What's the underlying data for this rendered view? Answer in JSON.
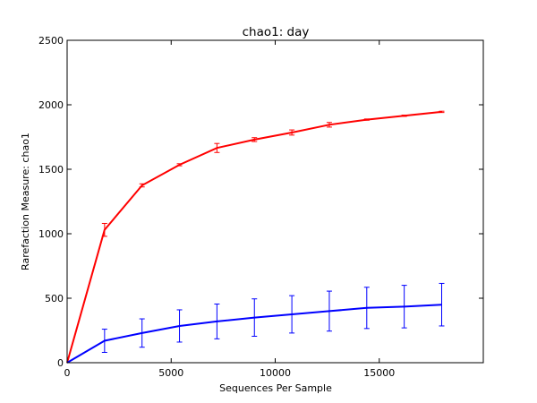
{
  "chart_data": {
    "type": "line",
    "title": "chao1: day",
    "xlabel": "Sequences Per Sample",
    "ylabel": "Rarefaction Measure: chao1",
    "xlim": [
      0,
      20000
    ],
    "ylim": [
      0,
      2500
    ],
    "xticks": [
      0,
      5000,
      10000,
      15000
    ],
    "yticks": [
      0,
      500,
      1000,
      1500,
      2000,
      2500
    ],
    "grid": false,
    "legend": "none",
    "series": [
      {
        "color": "#ff0000",
        "x": [
          0,
          1800,
          3600,
          5400,
          7200,
          9000,
          10800,
          12600,
          14400,
          16200,
          18000
        ],
        "y": [
          0,
          1030,
          1375,
          1535,
          1665,
          1730,
          1785,
          1845,
          1885,
          1915,
          1945
        ],
        "err": [
          0,
          50,
          12,
          8,
          35,
          15,
          20,
          18,
          5,
          5,
          5
        ]
      },
      {
        "color": "#0000ff",
        "x": [
          0,
          1800,
          3600,
          5400,
          7200,
          9000,
          10800,
          12600,
          14400,
          16200,
          18000
        ],
        "y": [
          0,
          170,
          230,
          285,
          320,
          350,
          375,
          400,
          425,
          435,
          450
        ],
        "err": [
          0,
          90,
          110,
          125,
          135,
          145,
          145,
          155,
          160,
          165,
          165
        ]
      }
    ]
  }
}
